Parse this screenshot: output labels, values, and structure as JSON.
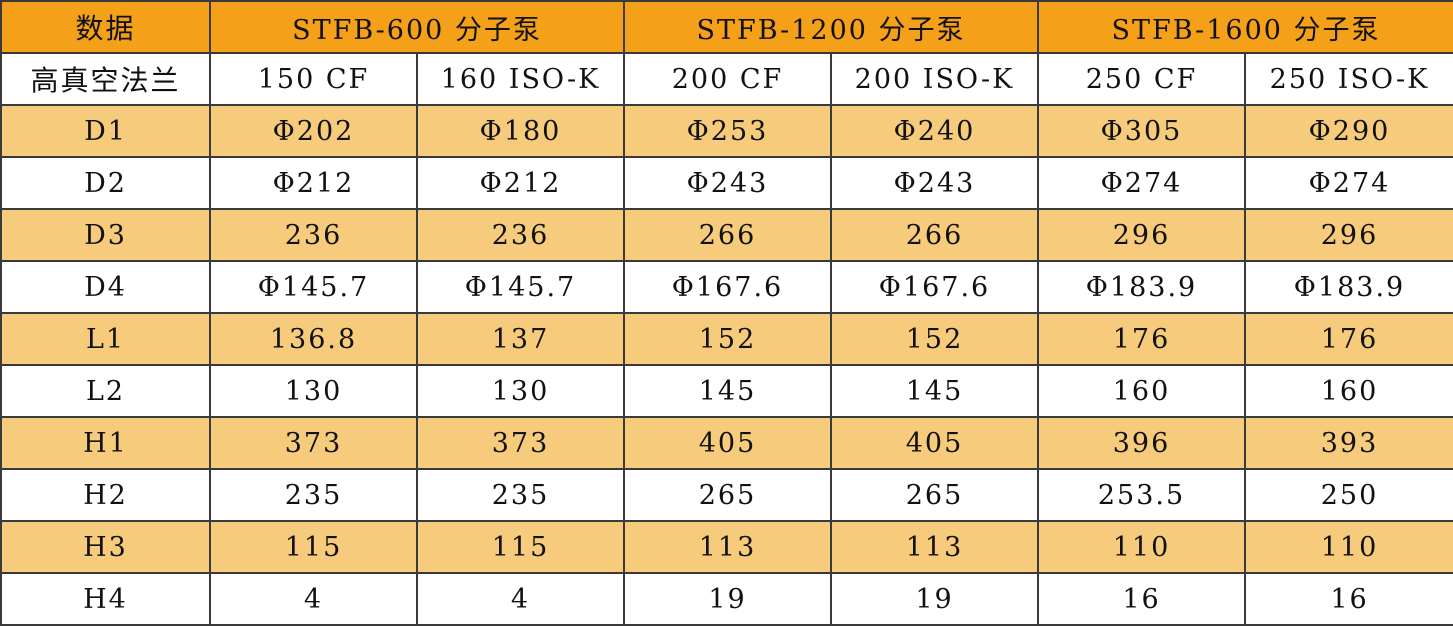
{
  "table": {
    "corner_label": "数据",
    "row_header_label": "高真空法兰",
    "groups": [
      {
        "name": "STFB-600 分子泵",
        "flanges": [
          "150 CF",
          "160 ISO-K"
        ]
      },
      {
        "name": "STFB-1200 分子泵",
        "flanges": [
          "200 CF",
          "200 ISO-K"
        ]
      },
      {
        "name": "STFB-1600 分子泵",
        "flanges": [
          "250 CF",
          "250 ISO-K"
        ]
      }
    ],
    "rows": [
      {
        "label": "D1",
        "values": [
          "Φ202",
          "Φ180",
          "Φ253",
          "Φ240",
          "Φ305",
          "Φ290"
        ]
      },
      {
        "label": "D2",
        "values": [
          "Φ212",
          "Φ212",
          "Φ243",
          "Φ243",
          "Φ274",
          "Φ274"
        ]
      },
      {
        "label": "D3",
        "values": [
          "236",
          "236",
          "266",
          "266",
          "296",
          "296"
        ]
      },
      {
        "label": "D4",
        "values": [
          "Φ145.7",
          "Φ145.7",
          "Φ167.6",
          "Φ167.6",
          "Φ183.9",
          "Φ183.9"
        ]
      },
      {
        "label": "L1",
        "values": [
          "136.8",
          "137",
          "152",
          "152",
          "176",
          "176"
        ]
      },
      {
        "label": "L2",
        "values": [
          "130",
          "130",
          "145",
          "145",
          "160",
          "160"
        ]
      },
      {
        "label": "H1",
        "values": [
          "373",
          "373",
          "405",
          "405",
          "396",
          "393"
        ]
      },
      {
        "label": "H2",
        "values": [
          "235",
          "235",
          "265",
          "265",
          "253.5",
          "250"
        ]
      },
      {
        "label": "H3",
        "values": [
          "115",
          "115",
          "113",
          "113",
          "110",
          "110"
        ]
      },
      {
        "label": "H4",
        "values": [
          "4",
          "4",
          "19",
          "19",
          "16",
          "16"
        ]
      }
    ],
    "colors": {
      "header": "#f4a018",
      "stripe": "#f6cc7c",
      "plain": "#ffffff",
      "border": "#3a3a3a"
    }
  }
}
